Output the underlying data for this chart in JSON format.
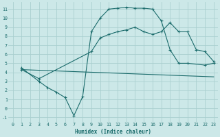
{
  "xlabel": "Humidex (Indice chaleur)",
  "bg_color": "#cce8e8",
  "grid_color": "#aacfcf",
  "line_color": "#1a6b6b",
  "xlim": [
    -0.5,
    23.5
  ],
  "ylim": [
    -1.5,
    11.8
  ],
  "xticks": [
    0,
    1,
    2,
    3,
    4,
    5,
    6,
    7,
    8,
    9,
    10,
    11,
    12,
    13,
    14,
    15,
    16,
    17,
    18,
    19,
    20,
    21,
    22,
    23
  ],
  "yticks": [
    -1,
    0,
    1,
    2,
    3,
    4,
    5,
    6,
    7,
    8,
    9,
    10,
    11
  ],
  "line1_x": [
    1,
    3,
    4,
    5,
    6,
    7,
    8,
    9,
    10,
    11,
    12,
    13,
    14,
    15,
    16,
    17,
    18,
    19,
    20,
    22,
    23
  ],
  "line1_y": [
    4.5,
    3.0,
    2.3,
    1.8,
    1.2,
    -0.8,
    1.3,
    8.5,
    10.0,
    11.0,
    11.1,
    11.2,
    11.1,
    11.1,
    11.0,
    9.7,
    6.5,
    5.0,
    5.0,
    4.8,
    5.0
  ],
  "line2_x": [
    1,
    3,
    9,
    10,
    11,
    12,
    13,
    14,
    15,
    16,
    17,
    18,
    19,
    20,
    21,
    22,
    23
  ],
  "line2_y": [
    4.3,
    3.3,
    6.3,
    7.8,
    8.2,
    8.5,
    8.7,
    9.0,
    8.5,
    8.2,
    8.5,
    9.5,
    8.5,
    8.5,
    6.5,
    6.3,
    5.2
  ],
  "line3_x": [
    1,
    23
  ],
  "line3_y": [
    4.3,
    3.5
  ]
}
